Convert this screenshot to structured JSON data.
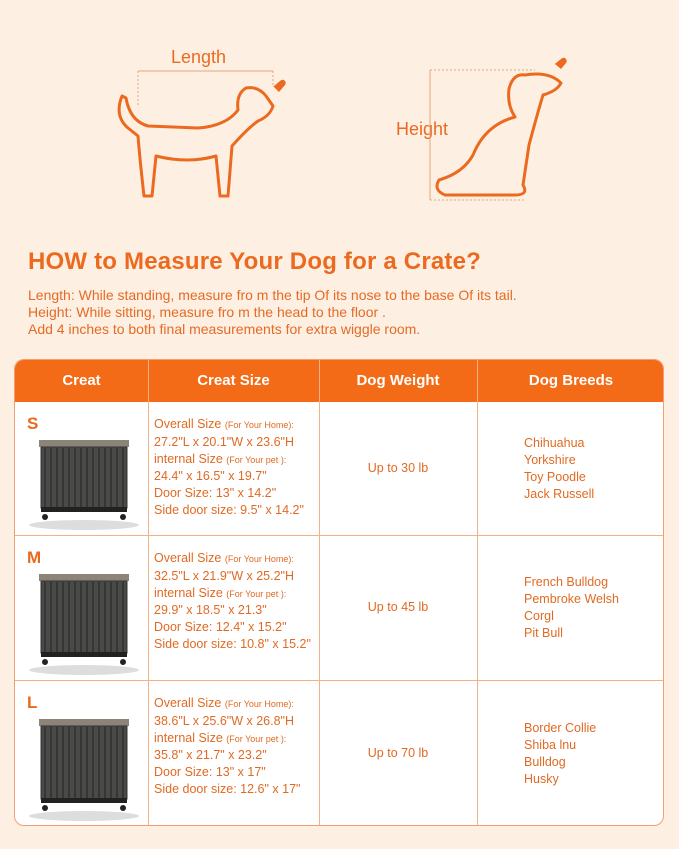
{
  "illustrations": {
    "length_label": "Length",
    "height_label": "Height"
  },
  "title": "HOW to Measure Your Dog for a Crate?",
  "instructions": [
    "Length: While standing, measure fro m the tip Of its nose to the base Of its tail.",
    "Height: While sitting, measure fro m the head to the floor .",
    "Add 4 inches to both final measurements for extra wiggle room."
  ],
  "table": {
    "headers": [
      "Creat",
      "Creat Size",
      "Dog Weight",
      "Dog Breeds"
    ],
    "rows": [
      {
        "size": "S",
        "overall_label": "Overall Size",
        "overall_note": "(For Your Home):",
        "overall": "27.2\"L x 20.1\"W x 23.6\"H",
        "internal_label": "internal Size",
        "internal_note": "(For Your pet ):",
        "internal": "24.4\" x 16.5\" x 19.7\"",
        "door": "Door Size: 13\" x 14.2\"",
        "side_door": "Side door size: 9.5\" x 14.2\"",
        "weight": "Up to 30 lb",
        "breeds": [
          "Chihuahua",
          "Yorkshire",
          "Toy Poodle",
          "Jack Russell"
        ]
      },
      {
        "size": "M",
        "overall_label": "Overall Size",
        "overall_note": "(For Your Home):",
        "overall": "32.5\"L x 21.9\"W x 25.2\"H",
        "internal_label": "internal Size",
        "internal_note": "(For Your pet ):",
        "internal": "29.9\" x 18.5\" x 21.3\"",
        "door": "Door Size: 12.4\" x 15.2\"",
        "side_door": "Side door size: 10.8\" x 15.2\"",
        "weight": "Up to 45 lb",
        "breeds": [
          "French Bulldog",
          "Pembroke Welsh",
          "Corgl",
          "Pit Bull"
        ]
      },
      {
        "size": "L",
        "overall_label": "Overall Size",
        "overall_note": "(For Your Home):",
        "overall": "38.6\"L x 25.6\"W x 26.8\"H",
        "internal_label": "internal Size",
        "internal_note": "(For Your pet ):",
        "internal": "35.8\" x 21.7\" x 23.2\"",
        "door": "Door Size: 13\" x 17\"",
        "side_door": "Side door size: 12.6\" x 17\"",
        "weight": "Up to 70 lb",
        "breeds": [
          "Border Collie",
          "Shiba lnu",
          "Bulldog",
          "Husky"
        ]
      }
    ]
  },
  "colors": {
    "accent": "#f36b17",
    "background": "#fdf0e3",
    "text": "#e06a23"
  }
}
